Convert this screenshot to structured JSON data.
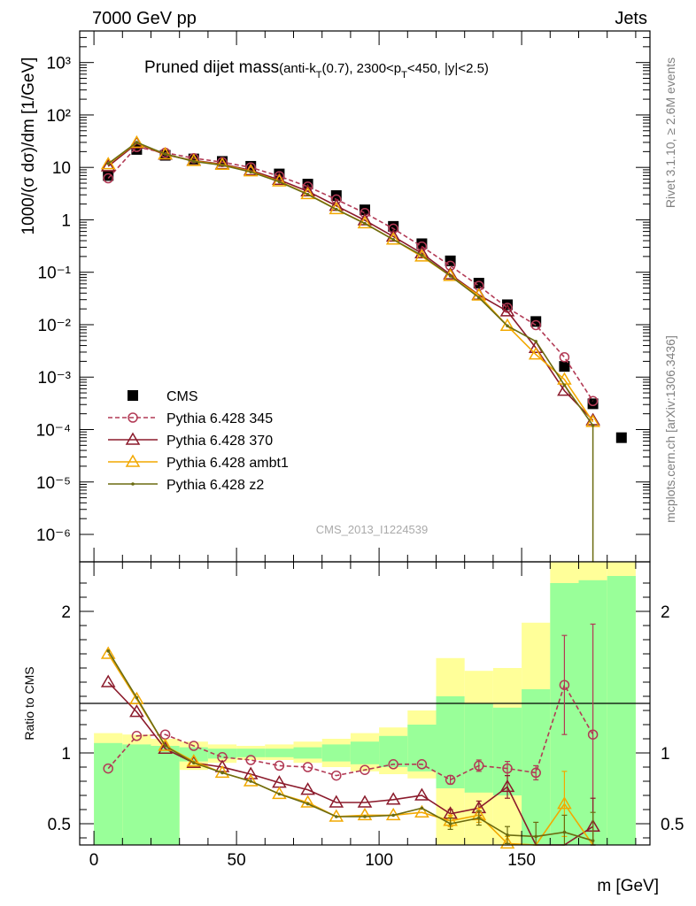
{
  "header": {
    "left": "7000 GeV pp",
    "right": "Jets"
  },
  "side_labels": {
    "rivet": "Rivet 3.1.10, ≥ 2.6M events",
    "mcplots": "mcplots.cern.ch [arXiv:1306.3436]"
  },
  "watermark": "CMS_2013_I1224539",
  "colors": {
    "data": "#000000",
    "p345": "#b23a55",
    "p370": "#8b1a2b",
    "ambt1": "#f2a800",
    "z2": "#6b6b10",
    "band_inner": "#99ff99",
    "band_outer": "#ffff99"
  },
  "chart_data": [
    {
      "type": "scatter",
      "title_main": "Pruned dijet mass",
      "title_sub_prefix": "(anti-k",
      "title_sub_sub1": "T",
      "title_sub_mid": "(0.7), 2300<p",
      "title_sub_sub2": "T",
      "title_sub_suffix": "<450, |y|<2.5)",
      "ylabel": "1000/σ dσ)/dm [1/GeV]",
      "ylabel_prefix": "1000/(σ dσ)/dm [1/GeV]",
      "yscale": "log",
      "ylim": [
        3e-07,
        4000
      ],
      "xlim": [
        -5,
        195
      ],
      "y_tick_labels": [
        "10⁻⁶",
        "10⁻⁵",
        "10⁻⁴",
        "10⁻³",
        "10⁻²",
        "10⁻¹",
        "1",
        "10",
        "10²",
        "10³"
      ],
      "legend_position": "bottom-left",
      "series": [
        {
          "name": "CMS",
          "marker": "square",
          "x": [
            5,
            15,
            25,
            35,
            45,
            55,
            65,
            75,
            85,
            95,
            105,
            115,
            125,
            135,
            145,
            155,
            165,
            175,
            185
          ],
          "y": [
            7,
            22,
            17,
            14.5,
            13,
            10.5,
            7.5,
            4.8,
            2.9,
            1.55,
            0.75,
            0.35,
            0.165,
            0.062,
            0.024,
            0.0115,
            0.0016,
            0.00031,
            7e-05
          ]
        },
        {
          "name": "Pythia 6.428 345",
          "marker": "open-circle",
          "style": "dashed",
          "x": [
            5,
            15,
            25,
            35,
            45,
            55,
            65,
            75,
            85,
            95,
            105,
            115,
            125,
            135,
            145,
            155,
            165,
            175
          ],
          "y": [
            6.2,
            24.5,
            19,
            15,
            12.6,
            10,
            6.8,
            4.3,
            2.45,
            1.35,
            0.68,
            0.31,
            0.133,
            0.055,
            0.021,
            0.0098,
            0.0024,
            0.00035
          ]
        },
        {
          "name": "Pythia 6.428 370",
          "marker": "open-triangle",
          "style": "solid",
          "x": [
            5,
            15,
            25,
            35,
            45,
            55,
            65,
            75,
            85,
            95,
            105,
            115,
            125,
            135,
            145,
            155,
            165,
            175
          ],
          "y": [
            10.5,
            28.5,
            17.5,
            13.5,
            11.5,
            8.8,
            5.8,
            3.5,
            1.85,
            0.98,
            0.48,
            0.23,
            0.091,
            0.037,
            0.018,
            0.0036,
            0.00055,
            0.00015
          ]
        },
        {
          "name": "Pythia 6.428 ambt1",
          "marker": "open-triangle",
          "style": "solid",
          "x": [
            5,
            15,
            25,
            35,
            45,
            55,
            65,
            75,
            85,
            95,
            105,
            115,
            125,
            135,
            145,
            155,
            165,
            175
          ],
          "y": [
            11.5,
            29.5,
            17.8,
            13.3,
            11.2,
            8.4,
            5.4,
            3.1,
            1.6,
            0.86,
            0.42,
            0.2,
            0.085,
            0.036,
            0.0095,
            0.0027,
            0.0009,
            0.00014
          ]
        },
        {
          "name": "Pythia 6.428 z2",
          "marker": "dot",
          "style": "solid",
          "x": [
            5,
            15,
            25,
            35,
            45,
            55,
            65,
            75,
            85,
            95,
            105,
            115,
            125,
            135,
            145,
            155,
            165,
            175
          ],
          "y": [
            11.8,
            30,
            18,
            13,
            11,
            8.2,
            5.3,
            3.05,
            1.58,
            0.85,
            0.42,
            0.21,
            0.085,
            0.033,
            0.0095,
            0.0048,
            0.0007,
            0.00012
          ]
        }
      ]
    },
    {
      "type": "scatter",
      "ylabel": "Ratio to CMS",
      "xlabel": "m [GeV]",
      "ylim": [
        0.35,
        2.35
      ],
      "xlim": [
        -5,
        195
      ],
      "x_ticks": [
        0,
        50,
        100,
        150
      ],
      "y_ticks": [
        0.5,
        1,
        2
      ],
      "bands": {
        "edges": [
          0,
          10,
          20,
          30,
          40,
          50,
          60,
          70,
          80,
          90,
          100,
          110,
          120,
          130,
          140,
          150,
          160,
          170,
          180,
          190
        ],
        "outer_lo": [
          0.35,
          0.35,
          0.35,
          0.88,
          0.93,
          0.95,
          0.95,
          0.93,
          0.9,
          0.87,
          0.85,
          0.82,
          0.35,
          0.35,
          0.35,
          0.35,
          0.35,
          0.35,
          0.35
        ],
        "outer_hi": [
          1.14,
          1.13,
          1.1,
          1.08,
          1.06,
          1.05,
          1.06,
          1.08,
          1.1,
          1.14,
          1.18,
          1.3,
          1.67,
          1.58,
          1.6,
          1.92,
          2.35,
          2.35,
          2.35
        ],
        "inner_lo": [
          0.35,
          0.35,
          0.35,
          0.94,
          0.96,
          0.97,
          0.97,
          0.96,
          0.94,
          0.92,
          0.9,
          0.87,
          0.75,
          0.72,
          0.7,
          0.35,
          0.35,
          0.35,
          0.35
        ],
        "inner_hi": [
          1.07,
          1.06,
          1.05,
          1.04,
          1.03,
          1.03,
          1.03,
          1.04,
          1.06,
          1.08,
          1.12,
          1.2,
          1.4,
          1.35,
          1.32,
          1.45,
          2.2,
          2.22,
          2.25
        ]
      },
      "series": [
        {
          "name": "Pythia 6.428 345",
          "x": [
            5,
            15,
            25,
            35,
            45,
            55,
            65,
            75,
            85,
            95,
            105,
            115,
            125,
            135,
            145,
            155,
            165,
            175
          ],
          "y": [
            0.89,
            1.12,
            1.13,
            1.05,
            0.97,
            0.95,
            0.91,
            0.9,
            0.84,
            0.88,
            0.92,
            0.92,
            0.81,
            0.91,
            0.89,
            0.86,
            1.48,
            1.13
          ],
          "err": [
            0,
            0,
            0,
            0,
            0,
            0,
            0,
            0,
            0,
            0,
            0,
            0,
            0.03,
            0.04,
            0.05,
            0.05,
            0.35,
            0.78
          ]
        },
        {
          "name": "Pythia 6.428 370",
          "x": [
            5,
            15,
            25,
            35,
            45,
            55,
            65,
            75,
            85,
            95,
            105,
            115,
            125,
            135,
            145,
            155,
            165,
            175
          ],
          "y": [
            1.5,
            1.29,
            1.03,
            0.93,
            0.9,
            0.85,
            0.79,
            0.74,
            0.65,
            0.65,
            0.67,
            0.7,
            0.57,
            0.61,
            0.76,
            0.3,
            0.3,
            0.48
          ],
          "err": [
            0,
            0,
            0,
            0,
            0,
            0,
            0,
            0,
            0,
            0,
            0,
            0,
            0.03,
            0.05,
            0.08,
            0,
            0,
            0.2
          ]
        },
        {
          "name": "Pythia 6.428 ambt1",
          "x": [
            5,
            15,
            25,
            35,
            45,
            55,
            65,
            75,
            85,
            95,
            105,
            115,
            125,
            135,
            145,
            155,
            165,
            175
          ],
          "y": [
            1.7,
            1.38,
            1.05,
            0.94,
            0.86,
            0.8,
            0.71,
            0.65,
            0.55,
            0.56,
            0.56,
            0.58,
            0.52,
            0.56,
            0.36,
            0.3,
            0.64,
            0.3
          ],
          "err": [
            0,
            0,
            0,
            0,
            0,
            0,
            0,
            0,
            0,
            0,
            0,
            0,
            0.04,
            0.05,
            0.05,
            0,
            0.23,
            0
          ]
        },
        {
          "name": "Pythia 6.428 z2",
          "x": [
            5,
            15,
            25,
            35,
            45,
            55,
            65,
            75,
            85,
            95,
            105,
            115,
            125,
            135,
            145,
            155,
            165,
            175
          ],
          "y": [
            1.72,
            1.39,
            1.05,
            0.93,
            0.86,
            0.8,
            0.71,
            0.64,
            0.55,
            0.55,
            0.56,
            0.61,
            0.5,
            0.54,
            0.42,
            0.41,
            0.44,
            0.38
          ],
          "err": [
            0,
            0,
            0,
            0,
            0,
            0,
            0,
            0,
            0,
            0,
            0,
            0,
            0.04,
            0.05,
            0.06,
            0.1,
            0.12,
            0.2
          ]
        }
      ]
    }
  ]
}
